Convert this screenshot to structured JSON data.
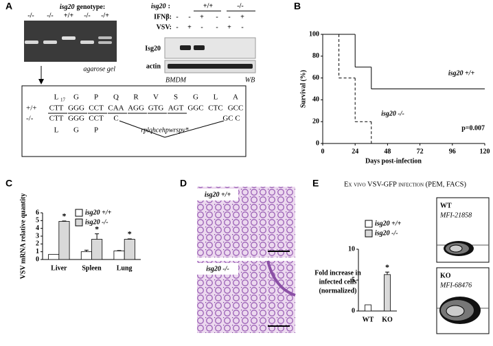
{
  "figure": {
    "panel_labels": [
      "A",
      "B",
      "C",
      "D",
      "E"
    ],
    "gel": {
      "gene": "isg20",
      "title": "genotype:",
      "lanes": [
        "-/-",
        "-/-",
        "+/+",
        "-/-",
        "-/+"
      ],
      "caption": "agarose gel"
    },
    "wb": {
      "gene": "isg20",
      "gene_sep": ":",
      "genotypes": [
        "+/+",
        "-/-"
      ],
      "rows": [
        {
          "label": "IFNβ:",
          "signs": [
            "-",
            "-",
            "+",
            "-",
            "-",
            "+"
          ]
        },
        {
          "label": "VSV:",
          "signs": [
            "-",
            "+",
            "-",
            "-",
            "+",
            "-"
          ]
        }
      ],
      "blots": [
        "Isg20",
        "actin"
      ],
      "footer": [
        "BMDM",
        "WB"
      ]
    },
    "sequence": {
      "aa_wt": [
        "L",
        "G",
        "P",
        "Q",
        "R",
        "V",
        "S",
        "G",
        "L",
        "A"
      ],
      "sub": "17",
      "wt_label": "+/+",
      "wt_codons": [
        "CTT",
        "GGG",
        "CCT",
        "CAA",
        "AGG",
        "GTG",
        "AGT",
        "GGC",
        "CTC",
        "GCC"
      ],
      "ko_label": "-/-",
      "ko_codons": [
        "CTT",
        "GGG",
        "CCT",
        "C"
      ],
      "ko_tail": "GC C",
      "aa_ko": [
        "L",
        "G",
        "P"
      ],
      "frameshift": "rplqhcehpwrspv*"
    },
    "histology": {
      "labels": [
        "isg20 +/+",
        "isg20 -/-"
      ]
    },
    "facs": [
      {
        "label": "WT",
        "mfi": "MFI-21858"
      },
      {
        "label": "KO",
        "mfi": "MFI-68476"
      }
    ]
  },
  "chart_data": [
    {
      "type": "line",
      "step": true,
      "xlabel": "Days post-infection",
      "ylabel": "Survival (%)",
      "annotation": "p=0.007",
      "xlim": [
        0,
        120
      ],
      "xticks": [
        0,
        24,
        48,
        72,
        96,
        120
      ],
      "ylim": [
        0,
        100
      ],
      "yticks": [
        0,
        20,
        40,
        60,
        80,
        100
      ],
      "series": [
        {
          "name": "isg20 +/+",
          "color": "#000000",
          "dash": false,
          "x": [
            0,
            24,
            36,
            120
          ],
          "values": [
            100,
            70,
            50,
            50
          ]
        },
        {
          "name": "isg20 -/-",
          "color": "#000000",
          "dash": true,
          "x": [
            0,
            12,
            24,
            36
          ],
          "values": [
            100,
            60,
            20,
            0
          ]
        }
      ]
    },
    {
      "type": "bar",
      "ylabel": "VSV mRNA relative quantity",
      "categories": [
        "Liver",
        "Spleen",
        "Lung"
      ],
      "ylim": [
        0,
        6
      ],
      "yticks": [
        0,
        1,
        2,
        3,
        4,
        5,
        6
      ],
      "series": [
        {
          "name": "isg20 +/+",
          "color": "#ffffff",
          "values": [
            0.65,
            1.0,
            1.1
          ],
          "errors": [
            null,
            0.2,
            0.05
          ]
        },
        {
          "name": "isg20 -/-",
          "color": "#d9d9d9",
          "values": [
            4.9,
            2.6,
            2.6
          ],
          "errors": [
            0.05,
            0.7,
            0.05
          ],
          "significance": [
            "*",
            "*",
            "*"
          ]
        }
      ]
    },
    {
      "type": "bar",
      "title": "Ex vivo VSV-GFP infection (PEM, FACS)",
      "ylabel": [
        "Fold increase in",
        "infected cells",
        "(normalized)"
      ],
      "categories": [
        "WT",
        "KO"
      ],
      "ylim": [
        0,
        10
      ],
      "yticks": [
        0,
        5,
        10
      ],
      "series": [
        {
          "name": "isg20 +/+",
          "color": "#ffffff",
          "values": [
            1,
            null
          ],
          "errors": [
            null,
            null
          ]
        },
        {
          "name": "isg20 -/-",
          "color": "#d9d9d9",
          "values": [
            null,
            5.9
          ],
          "errors": [
            null,
            0.4
          ],
          "significance": [
            null,
            "*"
          ]
        }
      ]
    }
  ]
}
